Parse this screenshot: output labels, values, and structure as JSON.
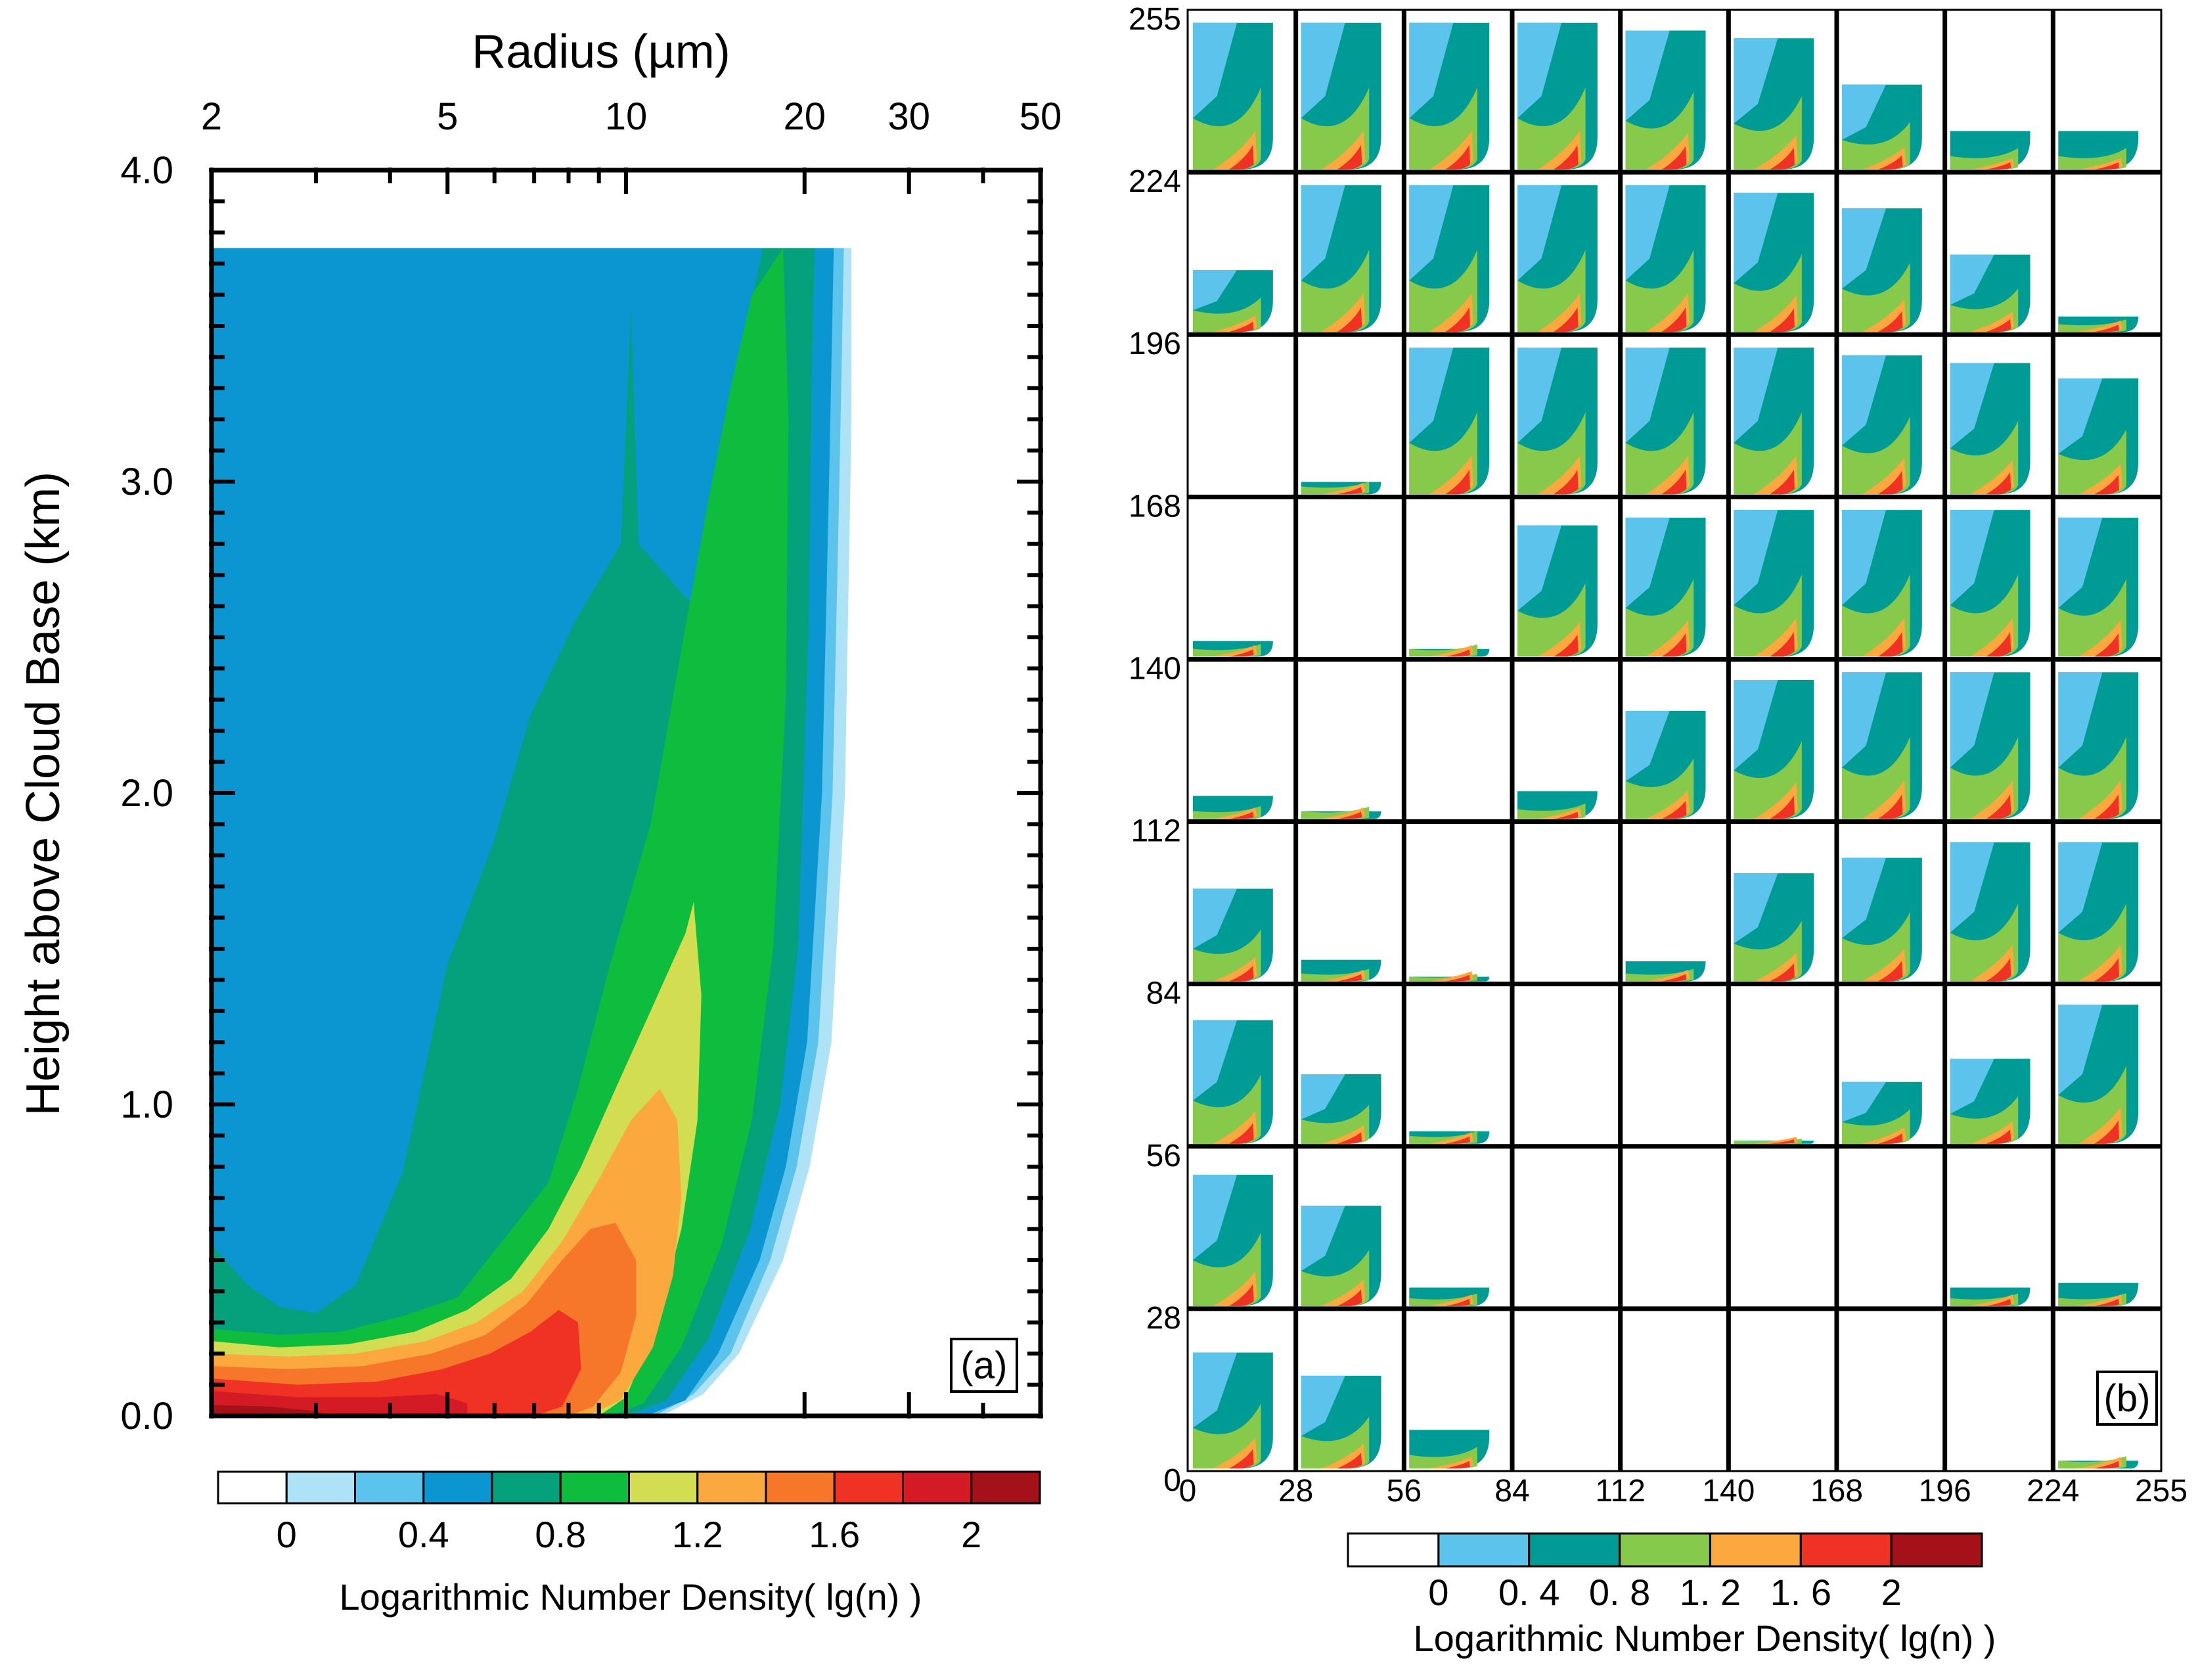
{
  "palette": {
    "white": "#ffffff",
    "sky_light": "#aee3f7",
    "sky": "#5bc3ec",
    "blue": "#0b96d1",
    "teal": "#019b96",
    "green_teal": "#05a07c",
    "green": "#0fbd3e",
    "yellow_green": "#d3dd52",
    "light_green": "#87c94a",
    "orange": "#fba83e",
    "orange_dark": "#f6762a",
    "red": "#ef3223",
    "crimson": "#d41a25",
    "dark_red": "#a51118"
  },
  "panel_a": {
    "tag": "(a)",
    "chart_data": {
      "type": "contour",
      "title": "",
      "xlabel": "Radius (µm)",
      "ylabel": "Height above Cloud Base (km)",
      "x_scale": "log",
      "xlim": [
        2,
        50
      ],
      "ylim": [
        0,
        4.0
      ],
      "x_ticks": [
        "2",
        "5",
        "10",
        "20",
        "30",
        "50"
      ],
      "x_tick_values": [
        2,
        5,
        10,
        20,
        30,
        50
      ],
      "y_ticks": [
        "0.0",
        "1.0",
        "2.0",
        "3.0",
        "4.0"
      ],
      "y_tick_values": [
        0,
        1,
        2,
        3,
        4
      ],
      "cloud_top_km": 3.75,
      "max_radius_um": 24,
      "levels": [
        0,
        0.2,
        0.4,
        0.6,
        0.8,
        1.0,
        1.2,
        1.4,
        1.6,
        1.8,
        2.0,
        2.2
      ]
    },
    "colorbar": {
      "labels": [
        "0",
        "0.4",
        "0.8",
        "1.2",
        "1.6",
        "2"
      ],
      "label_values": [
        0,
        0.4,
        0.8,
        1.2,
        1.6,
        2.0
      ],
      "title": "Logarithmic Number Density( lg(n) )"
    }
  },
  "panel_b": {
    "tag": "(b)",
    "chart_data": {
      "type": "small-multiples-contour",
      "grid_rows": 9,
      "grid_cols": 9,
      "x_ticks": [
        "0",
        "28",
        "56",
        "84",
        "112",
        "140",
        "168",
        "196",
        "224",
        "255"
      ],
      "y_ticks": [
        "255",
        "224",
        "196",
        "168",
        "140",
        "112",
        "84",
        "56",
        "28",
        "0"
      ],
      "cells": [
        [
          0.95,
          0.95,
          0.95,
          0.95,
          0.9,
          0.85,
          0.55,
          0.25,
          0.25
        ],
        [
          0.4,
          0.95,
          0.95,
          0.95,
          0.95,
          0.9,
          0.8,
          0.5,
          0.1
        ],
        [
          0,
          0.08,
          0.95,
          0.95,
          0.95,
          0.95,
          0.9,
          0.85,
          0.75
        ],
        [
          0.1,
          0,
          0.05,
          0.85,
          0.9,
          0.95,
          0.95,
          0.95,
          0.9
        ],
        [
          0.15,
          0.05,
          0,
          0.18,
          0.7,
          0.9,
          0.95,
          0.95,
          0.95
        ],
        [
          0.6,
          0.14,
          0.03,
          0,
          0.13,
          0.7,
          0.8,
          0.9,
          0.9
        ],
        [
          0.8,
          0.45,
          0.08,
          0,
          0,
          0.02,
          0.4,
          0.55,
          0.9
        ],
        [
          0.85,
          0.65,
          0.12,
          0,
          0,
          0,
          0,
          0.12,
          0.15
        ],
        [
          0.75,
          0.6,
          0.25,
          0,
          0,
          0,
          0,
          0,
          0.05
        ]
      ],
      "cells_unit": "fraction of cell height occupied by cloud"
    },
    "colorbar": {
      "labels": [
        "0",
        "0. 4",
        "0. 8",
        "1. 2",
        "1. 6",
        "2"
      ],
      "label_values": [
        0,
        0.4,
        0.8,
        1.2,
        1.6,
        2.0
      ],
      "title": "Logarithmic Number Density( lg(n) )"
    }
  }
}
